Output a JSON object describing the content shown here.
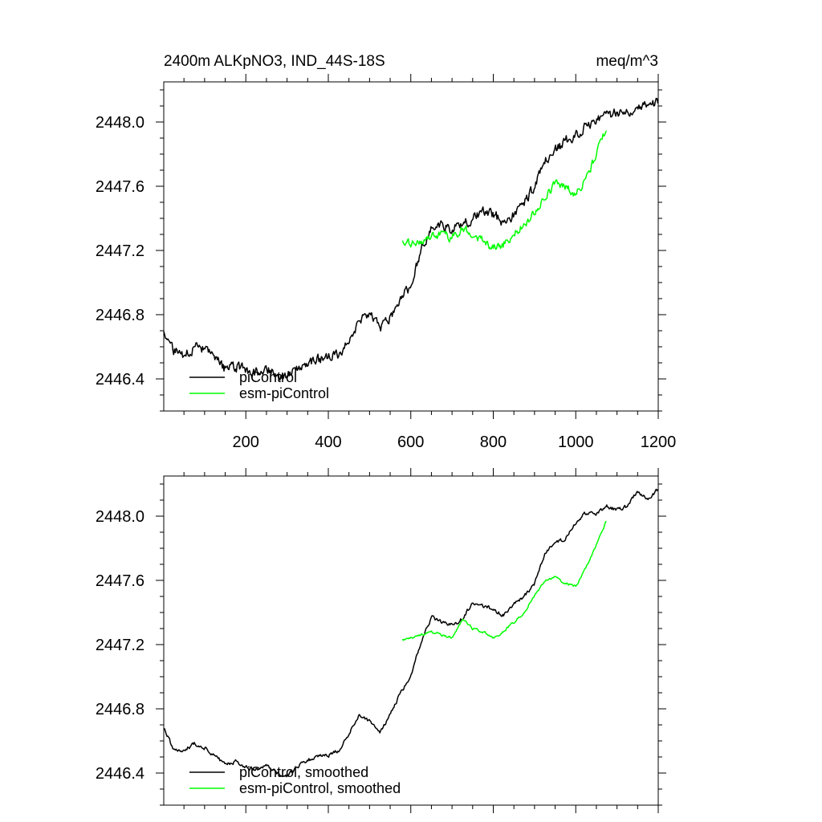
{
  "figure": {
    "title_left": "2400m ALKpNO3, IND_44S-18S",
    "title_right": "meq/m^3"
  },
  "colors": {
    "picontrol": "#000000",
    "esm_picontrol": "#00ff00"
  },
  "chart_data": [
    {
      "type": "line",
      "title": "2400m ALKpNO3, IND_44S-18S",
      "units": "meq/m^3",
      "xlim": [
        1,
        1200
      ],
      "ylim": [
        2446.2,
        2448.25
      ],
      "x_ticks": [
        200,
        400,
        600,
        800,
        1000,
        1200
      ],
      "y_ticks": [
        2446.4,
        2446.8,
        2447.2,
        2447.6,
        2448.0
      ],
      "y_tick_labels": [
        "2446.4",
        "2446.8",
        "2447.2",
        "2447.6",
        "2448.0"
      ],
      "x_tick_labels": [
        "200",
        "400",
        "600",
        "800",
        "1000",
        "1200"
      ],
      "legend": "bottom-left",
      "series": [
        {
          "name": "piControl",
          "color": "#000000",
          "x": [
            1,
            25,
            50,
            75,
            100,
            125,
            150,
            175,
            200,
            225,
            250,
            275,
            300,
            325,
            350,
            375,
            400,
            425,
            450,
            475,
            500,
            525,
            550,
            575,
            600,
            625,
            650,
            675,
            700,
            725,
            750,
            775,
            800,
            825,
            850,
            875,
            900,
            925,
            950,
            975,
            1000,
            1025,
            1050,
            1075,
            1100,
            1125,
            1150,
            1175,
            1200
          ],
          "y": [
            2446.7,
            2446.57,
            2446.55,
            2446.6,
            2446.58,
            2446.52,
            2446.46,
            2446.48,
            2446.45,
            2446.44,
            2446.47,
            2446.43,
            2446.42,
            2446.46,
            2446.5,
            2446.52,
            2446.53,
            2446.55,
            2446.65,
            2446.75,
            2446.8,
            2446.72,
            2446.78,
            2446.9,
            2446.98,
            2447.2,
            2447.34,
            2447.36,
            2447.33,
            2447.36,
            2447.4,
            2447.44,
            2447.42,
            2447.38,
            2447.42,
            2447.5,
            2447.6,
            2447.75,
            2447.82,
            2447.88,
            2447.92,
            2447.98,
            2448.02,
            2448.04,
            2448.06,
            2448.07,
            2448.1,
            2448.11,
            2448.13
          ],
          "noise": 0.05
        },
        {
          "name": "esm-piControl",
          "color": "#00ff00",
          "x": [
            580,
            600,
            625,
            650,
            675,
            700,
            725,
            750,
            775,
            800,
            825,
            850,
            875,
            900,
            925,
            950,
            975,
            1000,
            1025,
            1050,
            1075
          ],
          "y": [
            2447.24,
            2447.24,
            2447.26,
            2447.28,
            2447.3,
            2447.28,
            2447.34,
            2447.3,
            2447.26,
            2447.22,
            2447.24,
            2447.3,
            2447.36,
            2447.44,
            2447.52,
            2447.62,
            2447.6,
            2447.55,
            2447.65,
            2447.8,
            2447.98
          ],
          "noise": 0.04
        }
      ],
      "legend_entries": [
        "piControl",
        "esm-piControl"
      ]
    },
    {
      "type": "line",
      "xlim": [
        1,
        1200
      ],
      "ylim": [
        2446.2,
        2448.25
      ],
      "x_ticks": [
        200,
        400,
        600,
        800,
        1000,
        1200
      ],
      "y_ticks": [
        2446.4,
        2446.8,
        2447.2,
        2447.6,
        2448.0
      ],
      "y_tick_labels": [
        "2446.4",
        "2446.8",
        "2447.2",
        "2447.6",
        "2448.0"
      ],
      "legend": "bottom-left",
      "series": [
        {
          "name": "piControl, smoothed",
          "color": "#000000",
          "x": [
            1,
            25,
            50,
            75,
            100,
            125,
            150,
            175,
            200,
            225,
            250,
            275,
            300,
            325,
            350,
            375,
            400,
            425,
            450,
            475,
            500,
            525,
            550,
            575,
            600,
            625,
            650,
            675,
            700,
            725,
            750,
            775,
            800,
            825,
            850,
            875,
            900,
            925,
            950,
            975,
            1000,
            1025,
            1050,
            1075,
            1100,
            1125,
            1150,
            1175,
            1200
          ],
          "y": [
            2446.68,
            2446.55,
            2446.54,
            2446.58,
            2446.56,
            2446.5,
            2446.46,
            2446.47,
            2446.44,
            2446.42,
            2446.45,
            2446.4,
            2446.38,
            2446.44,
            2446.48,
            2446.5,
            2446.51,
            2446.54,
            2446.64,
            2446.76,
            2446.72,
            2446.66,
            2446.76,
            2446.9,
            2447.0,
            2447.22,
            2447.37,
            2447.34,
            2447.32,
            2447.36,
            2447.46,
            2447.44,
            2447.42,
            2447.38,
            2447.46,
            2447.5,
            2447.58,
            2447.76,
            2447.84,
            2447.86,
            2447.96,
            2448.02,
            2448.02,
            2448.06,
            2448.04,
            2448.06,
            2448.16,
            2448.1,
            2448.17
          ],
          "noise": 0.018
        },
        {
          "name": "esm-piControl, smoothed",
          "color": "#00ff00",
          "x": [
            580,
            600,
            625,
            650,
            675,
            700,
            725,
            750,
            775,
            800,
            825,
            850,
            875,
            900,
            925,
            950,
            975,
            1000,
            1025,
            1050,
            1075
          ],
          "y": [
            2447.23,
            2447.24,
            2447.26,
            2447.28,
            2447.26,
            2447.24,
            2447.36,
            2447.3,
            2447.28,
            2447.24,
            2447.28,
            2447.34,
            2447.4,
            2447.5,
            2447.6,
            2447.62,
            2447.58,
            2447.56,
            2447.68,
            2447.82,
            2447.98
          ],
          "noise": 0.012
        }
      ],
      "legend_entries": [
        "piControl, smoothed",
        "esm-piControl, smoothed"
      ]
    }
  ]
}
